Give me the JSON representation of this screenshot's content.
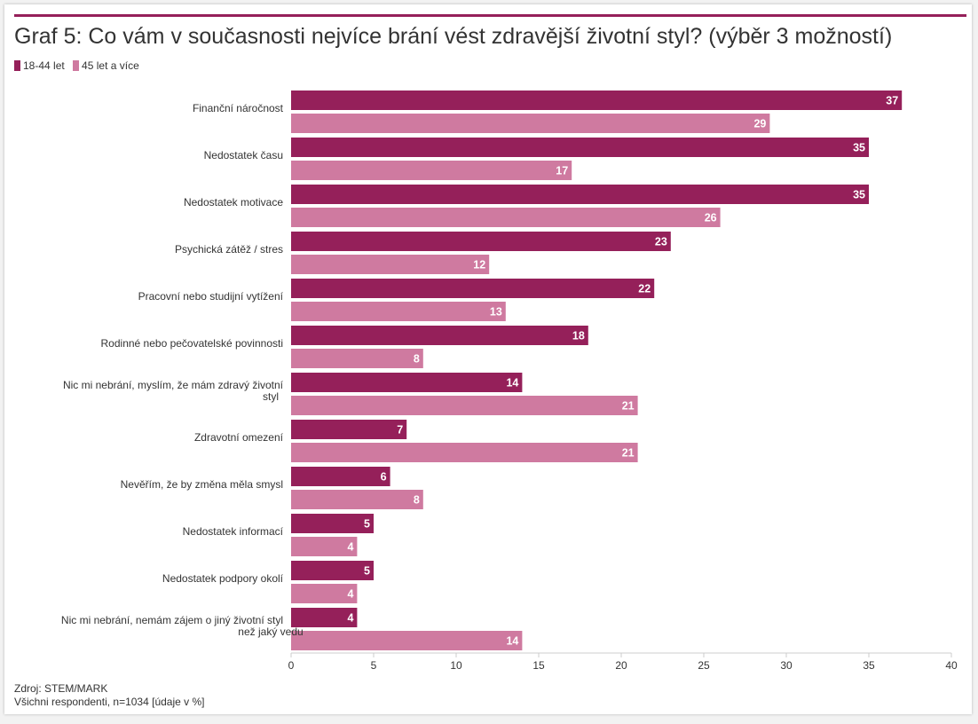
{
  "chart_data": {
    "type": "bar",
    "orientation": "horizontal",
    "title": "Graf 5: Co vám v současnosti nejvíce brání vést zdravější životní styl? (výběr 3 možností)",
    "categories": [
      "Finanční náročnost",
      "Nedostatek času",
      "Nedostatek motivace",
      "Psychická zátěž / stres",
      "Pracovní nebo studijní vytížení",
      "Rodinné nebo pečovatelské povinnosti",
      "Nic mi nebrání, myslím, že mám zdravý životní styl",
      "Zdravotní omezení",
      "Nevěřím, že by změna měla smysl",
      "Nedostatek informací",
      "Nedostatek podpory okolí",
      "Nic mi nebrání, nemám zájem o jiný životní styl než jaký vedu"
    ],
    "series": [
      {
        "name": "18-44 let",
        "color": "#95205a",
        "values": [
          37,
          35,
          35,
          23,
          22,
          18,
          14,
          7,
          6,
          5,
          5,
          4
        ]
      },
      {
        "name": "45 let a více",
        "color": "#cf7aa0",
        "values": [
          29,
          17,
          26,
          12,
          13,
          8,
          21,
          21,
          8,
          4,
          4,
          14
        ]
      }
    ],
    "xlim": [
      0,
      40
    ],
    "xticks": [
      "0",
      "5",
      "10",
      "15",
      "20",
      "25",
      "30",
      "35",
      "40"
    ],
    "xlabel": "",
    "ylabel": "",
    "legend": "top-left"
  },
  "footer": {
    "source": "Zdroj: STEM/MARK",
    "note": "Všichni respondenti, n=1034 [údaje v %]"
  }
}
